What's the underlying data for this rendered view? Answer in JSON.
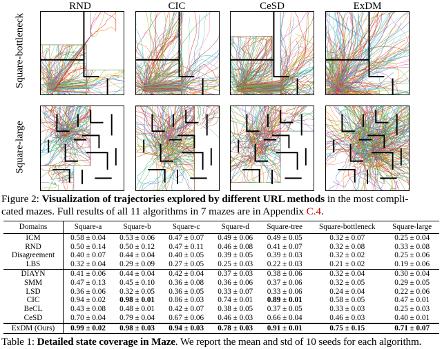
{
  "figure": {
    "columns": [
      "RND",
      "CIC",
      "CeSD",
      "ExDM"
    ],
    "rows": [
      "Square-bottleneck",
      "Square-large"
    ],
    "caption_prefix": "Figure 2: ",
    "caption_bold": "Visualization of trajectories explored by different URL methods",
    "caption_rest_line1": " in the most compli-",
    "caption_line2": "cated mazes. Full results of all 11 algorithms in 7 mazes are in Appendix ",
    "caption_link": "C.4",
    "caption_end": "."
  },
  "table": {
    "headers": [
      "Domains",
      "Square-a",
      "Square-b",
      "Square-c",
      "Square-d",
      "Square-tree",
      "Square-bottleneck",
      "Square-large"
    ],
    "groups": [
      [
        {
          "name": "ICM",
          "cells": [
            "0.58 ± 0.04",
            "0.53 ± 0.06",
            "0.47 ± 0.07",
            "0.49 ± 0.06",
            "0.49 ± 0.05",
            "0.32 ± 0.07",
            "0.25 ± 0.04"
          ]
        },
        {
          "name": "RND",
          "cells": [
            "0.50 ± 0.14",
            "0.50 ± 0.12",
            "0.47 ± 0.11",
            "0.46 ± 0.08",
            "0.41 ± 0.07",
            "0.32 ± 0.08",
            "0.33 ± 0.08"
          ]
        },
        {
          "name": "Disagreement",
          "cells": [
            "0.40 ± 0.07",
            "0.44 ± 0.04",
            "0.40 ± 0.05",
            "0.39 ± 0.05",
            "0.39 ± 0.03",
            "0.32 ± 0.02",
            "0.25 ± 0.06"
          ]
        },
        {
          "name": "LBS",
          "cells": [
            "0.32 ± 0.04",
            "0.29 ± 0.09",
            "0.27 ± 0.05",
            "0.25 ± 0.03",
            "0.22 ± 0.03",
            "0.21 ± 0.02",
            "0.19 ± 0.06"
          ]
        }
      ],
      [
        {
          "name": "DIAYN",
          "cells": [
            "0.41 ± 0.06",
            "0.44 ± 0.04",
            "0.42 ± 0.04",
            "0.37 ± 0.03",
            "0.38 ± 0.06",
            "0.32 ± 0.04",
            "0.30 ± 0.04"
          ]
        },
        {
          "name": "SMM",
          "cells": [
            "0.47 ± 0.13",
            "0.45 ± 0.10",
            "0.36 ± 0.08",
            "0.36 ± 0.06",
            "0.37 ± 0.06",
            "0.32 ± 0.05",
            "0.29 ± 0.05"
          ]
        },
        {
          "name": "LSD",
          "cells": [
            "0.36 ± 0.06",
            "0.32 ± 0.05",
            "0.36 ± 0.05",
            "0.33 ± 0.07",
            "0.33 ± 0.06",
            "0.24 ± 0.04",
            "0.22 ± 0.06"
          ]
        },
        {
          "name": "CIC",
          "cells": [
            "0.94 ± 0.02",
            "0.98 ± 0.01",
            "0.86 ± 0.03",
            "0.74 ± 0.01",
            "0.89 ± 0.01",
            "0.58 ± 0.05",
            "0.47 ± 0.01"
          ],
          "bold": [
            1,
            4
          ]
        },
        {
          "name": "BeCL",
          "cells": [
            "0.43 ± 0.08",
            "0.48 ± 0.01",
            "0.42 ± 0.07",
            "0.38 ± 0.05",
            "0.37 ± 0.05",
            "0.33 ± 0.03",
            "0.25 ± 0.03"
          ]
        },
        {
          "name": "CeSD",
          "cells": [
            "0.70 ± 0.04",
            "0.79 ± 0.04",
            "0.67 ± 0.06",
            "0.46 ± 0.03",
            "0.66 ± 0.04",
            "0.46 ± 0.03",
            "0.40 ± 0.01"
          ]
        }
      ],
      [
        {
          "name": "ExDM (Ours)",
          "cells": [
            "0.99 ± 0.02",
            "0.98 ± 0.03",
            "0.94 ± 0.03",
            "0.78 ± 0.03",
            "0.91 ± 0.01",
            "0.75 ± 0.15",
            "0.71 ± 0.07"
          ],
          "bold": [
            0,
            1,
            2,
            3,
            4,
            5,
            6
          ]
        }
      ]
    ],
    "caption_prefix": "Table 1: ",
    "caption_bold": "Detailed state coverage in Maze",
    "caption_rest": ". We report the mean and std of 10 seeds for each algorithm."
  },
  "colors": {
    "link": "#d10000",
    "trajectory_palette": [
      "#e41a1c",
      "#377eb8",
      "#4daf4a",
      "#984ea3",
      "#ff7f00",
      "#a65628",
      "#f781bf",
      "#66c2a5",
      "#b3b300",
      "#17becf",
      "#8c564b"
    ]
  }
}
